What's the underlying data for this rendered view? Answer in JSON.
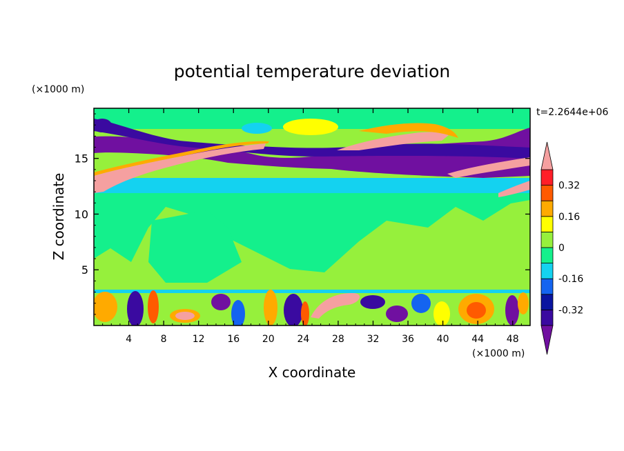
{
  "chart_data": {
    "type": "heatmap",
    "title": "potential temperature deviation",
    "xlabel": "X coordinate",
    "ylabel": "Z coordinate",
    "x_unit": "(×1000 m)",
    "z_unit": "(×1000 m)",
    "time_label": "t=2.2644e+06",
    "xlim": [
      0,
      50
    ],
    "zlim": [
      0,
      19.5
    ],
    "x_ticks": [
      4,
      8,
      12,
      16,
      20,
      24,
      28,
      32,
      36,
      40,
      44,
      48
    ],
    "z_ticks": [
      5,
      10,
      15
    ],
    "colorbar": {
      "levels": [
        -0.4,
        -0.32,
        -0.24,
        -0.16,
        -0.08,
        0,
        0.08,
        0.16,
        0.24,
        0.32,
        0.4
      ],
      "labels": [
        "0.32",
        "0.16",
        "0",
        "-0.16",
        "-0.32"
      ],
      "label_values": [
        0.32,
        0.16,
        0,
        -0.16,
        -0.32
      ],
      "colors": [
        "#7010a0",
        "#3a0aa0",
        "#0a14a0",
        "#1464f0",
        "#14d2f0",
        "#14f08c",
        "#96f03c",
        "#ffff00",
        "#ffaa00",
        "#ff5a00",
        "#ff1e28",
        "#f5a0a0"
      ],
      "extend": "both"
    },
    "grid": false
  }
}
